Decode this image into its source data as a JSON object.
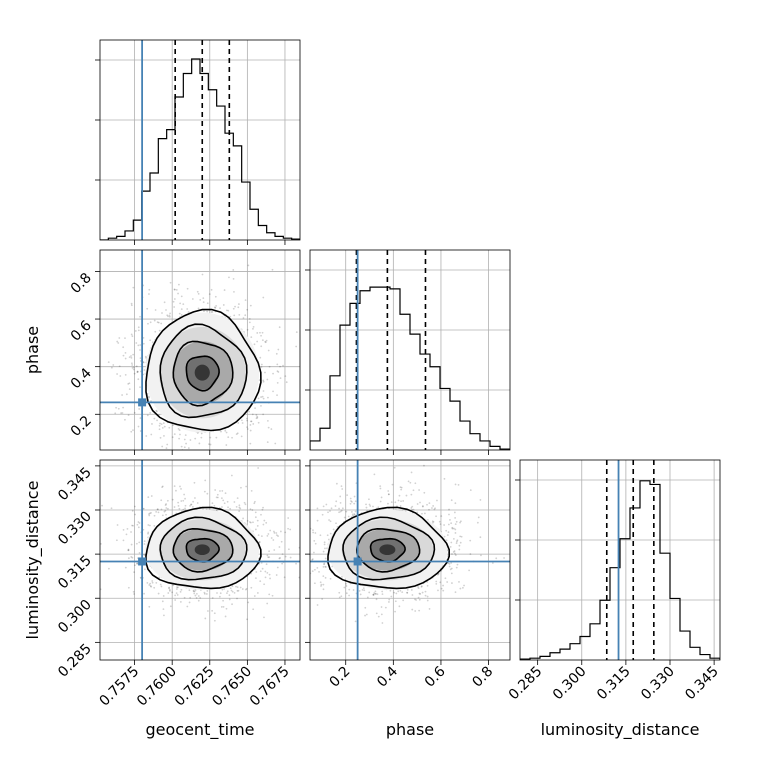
{
  "chart_data": {
    "type": "corner",
    "parameters": [
      "geocent_time",
      "phase",
      "luminosity_distance"
    ],
    "ranges": {
      "geocent_time": [
        0.7552,
        0.7685
      ],
      "phase": [
        0.05,
        0.89
      ],
      "luminosity_distance": [
        0.279,
        0.347
      ]
    },
    "ticks": {
      "geocent_time": [
        0.7575,
        0.76,
        0.7625,
        0.765,
        0.7675
      ],
      "phase": [
        0.2,
        0.4,
        0.6,
        0.8
      ],
      "luminosity_distance": [
        0.285,
        0.3,
        0.315,
        0.33,
        0.345
      ]
    },
    "tick_labels": {
      "geocent_time": [
        "0.7575",
        "0.7600",
        "0.7625",
        "0.7650",
        "0.7675"
      ],
      "phase": [
        "0.2",
        "0.4",
        "0.6",
        "0.8"
      ],
      "luminosity_distance": [
        "0.285",
        "0.300",
        "0.315",
        "0.330",
        "0.345"
      ]
    },
    "truths": {
      "geocent_time": 0.758,
      "phase": 0.25,
      "luminosity_distance": 0.3125
    },
    "quantiles": {
      "geocent_time": [
        0.7602,
        0.762,
        0.7638
      ],
      "phase": [
        0.245,
        0.375,
        0.535
      ],
      "luminosity_distance": [
        0.3085,
        0.3175,
        0.3245
      ]
    },
    "histograms": {
      "geocent_time": [
        0,
        0.01,
        0.02,
        0.05,
        0.11,
        0.27,
        0.37,
        0.56,
        0.61,
        0.79,
        0.92,
        1.0,
        0.92,
        0.83,
        0.74,
        0.59,
        0.52,
        0.32,
        0.17,
        0.08,
        0.04,
        0.02,
        0.01,
        0.005
      ],
      "phase": [
        0.05,
        0.12,
        0.41,
        0.69,
        0.81,
        0.88,
        0.9,
        0.9,
        0.89,
        0.75,
        0.64,
        0.53,
        0.46,
        0.34,
        0.27,
        0.16,
        0.09,
        0.05,
        0.02,
        0.005
      ],
      "luminosity_distance": [
        0.005,
        0.01,
        0.02,
        0.04,
        0.06,
        0.09,
        0.13,
        0.2,
        0.33,
        0.51,
        0.67,
        0.84,
        0.99,
        0.97,
        0.59,
        0.34,
        0.16,
        0.07,
        0.03,
        0.01
      ]
    },
    "gaussian_fits": {
      "geocent_time": {
        "mean": 0.762,
        "std": 0.0018
      },
      "phase": {
        "mean": 0.375,
        "std": 0.12
      },
      "luminosity_distance": {
        "mean": 0.3165,
        "std": 0.0065
      }
    },
    "histogram_yticks": 3,
    "grid": true,
    "xlabels": [
      "geocent_time",
      "phase",
      "luminosity_distance"
    ],
    "ylabels": [
      "",
      "phase",
      "luminosity_distance"
    ],
    "truth_color": "#4682b4",
    "quantile_style": "dashed",
    "contour_levels": 4
  }
}
